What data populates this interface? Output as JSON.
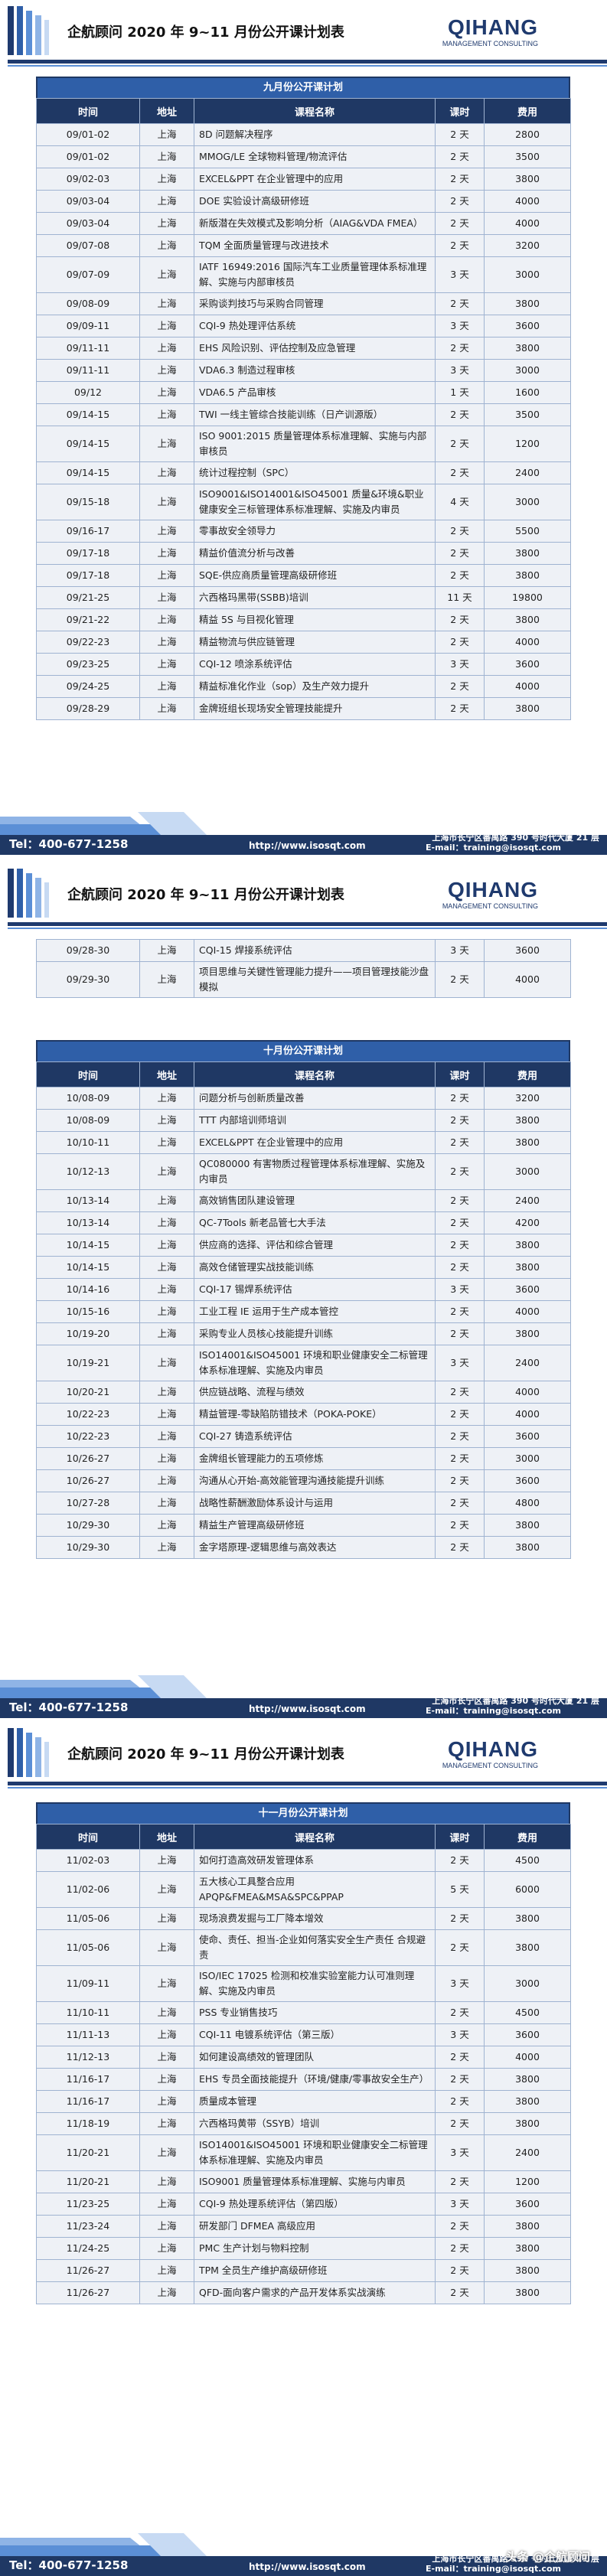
{
  "header": {
    "title": "企航顾问 2020 年 9~11 月份公开课计划表",
    "logo": "QIHANG",
    "logo_sub": "MANAGEMENT CONSULTING"
  },
  "columns": [
    "时间",
    "地址",
    "课程名称",
    "课时",
    "费用"
  ],
  "pages": [
    {
      "blocks": [
        {
          "title": "九月份公开课计划",
          "rows": [
            [
              "09/01-02",
              "上海",
              "8D 问题解决程序",
              "2 天",
              "2800"
            ],
            [
              "09/01-02",
              "上海",
              "MMOG/LE 全球物料管理/物流评估",
              "2 天",
              "3500"
            ],
            [
              "09/02-03",
              "上海",
              "EXCEL&PPT 在企业管理中的应用",
              "2 天",
              "3800"
            ],
            [
              "09/03-04",
              "上海",
              "DOE 实验设计高级研修班",
              "2 天",
              "4000"
            ],
            [
              "09/03-04",
              "上海",
              "新版潜在失效模式及影响分析（AIAG&VDA FMEA）",
              "2 天",
              "4000"
            ],
            [
              "09/07-08",
              "上海",
              "TQM 全面质量管理与改进技术",
              "2 天",
              "3200"
            ],
            [
              "09/07-09",
              "上海",
              "IATF 16949:2016 国际汽车工业质量管理体系标准理解、实施与内部审核员",
              "3 天",
              "3000"
            ],
            [
              "09/08-09",
              "上海",
              "采购谈判技巧与采购合同管理",
              "2 天",
              "3800"
            ],
            [
              "09/09-11",
              "上海",
              "CQI-9 热处理评估系统",
              "3 天",
              "3600"
            ],
            [
              "09/11-11",
              "上海",
              "EHS 风险识别、评估控制及应急管理",
              "2 天",
              "3800"
            ],
            [
              "09/11-11",
              "上海",
              "VDA6.3 制造过程审核",
              "3 天",
              "3000"
            ],
            [
              "09/12",
              "上海",
              "VDA6.5 产品审核",
              "1 天",
              "1600"
            ],
            [
              "09/14-15",
              "上海",
              "TWI 一线主管综合技能训练（日产训源版）",
              "2 天",
              "3500"
            ],
            [
              "09/14-15",
              "上海",
              "ISO 9001:2015 质量管理体系标准理解、实施与内部审核员",
              "2 天",
              "1200"
            ],
            [
              "09/14-15",
              "上海",
              "统计过程控制（SPC）",
              "2 天",
              "2400"
            ],
            [
              "09/15-18",
              "上海",
              "ISO9001&ISO14001&ISO45001 质量&环境&职业健康安全三标管理体系标准理解、实施及内审员",
              "4 天",
              "3000"
            ],
            [
              "09/16-17",
              "上海",
              "零事故安全领导力",
              "2 天",
              "5500"
            ],
            [
              "09/17-18",
              "上海",
              "精益价值流分析与改善",
              "2 天",
              "3800"
            ],
            [
              "09/17-18",
              "上海",
              "SQE-供应商质量管理高级研修班",
              "2 天",
              "3800"
            ],
            [
              "09/21-25",
              "上海",
              "六西格玛黑带(SSBB)培训",
              "11 天",
              "19800"
            ],
            [
              "09/21-22",
              "上海",
              "精益 5S 与目视化管理",
              "2 天",
              "3800"
            ],
            [
              "09/22-23",
              "上海",
              "精益物流与供应链管理",
              "2 天",
              "4000"
            ],
            [
              "09/23-25",
              "上海",
              "CQI-12 喷涂系统评估",
              "3 天",
              "3600"
            ],
            [
              "09/24-25",
              "上海",
              "精益标准化作业（sop）及生产效力提升",
              "2 天",
              "4000"
            ],
            [
              "09/28-29",
              "上海",
              "金牌班组长现场安全管理技能提升",
              "2 天",
              "3800"
            ]
          ]
        }
      ]
    },
    {
      "blocks": [
        {
          "rows": [
            [
              "09/28-30",
              "上海",
              "CQI-15 焊接系统评估",
              "3 天",
              "3600"
            ],
            [
              "09/29-30",
              "上海",
              "项目思维与关键性管理能力提升——项目管理技能沙盘模拟",
              "2 天",
              "4000"
            ]
          ]
        },
        {
          "title": "十月份公开课计划",
          "rows": [
            [
              "10/08-09",
              "上海",
              "问题分析与创新质量改善",
              "2 天",
              "3200"
            ],
            [
              "10/08-09",
              "上海",
              "TTT 内部培训师培训",
              "2 天",
              "3800"
            ],
            [
              "10/10-11",
              "上海",
              "EXCEL&PPT 在企业管理中的应用",
              "2 天",
              "3800"
            ],
            [
              "10/12-13",
              "上海",
              "QC080000 有害物质过程管理体系标准理解、实施及内审员",
              "2 天",
              "3000"
            ],
            [
              "10/13-14",
              "上海",
              "高效销售团队建设管理",
              "2 天",
              "2400"
            ],
            [
              "10/13-14",
              "上海",
              "QC-7Tools 新老品管七大手法",
              "2 天",
              "4200"
            ],
            [
              "10/14-15",
              "上海",
              "供应商的选择、评估和综合管理",
              "2 天",
              "3800"
            ],
            [
              "10/14-15",
              "上海",
              "高效仓储管理实战技能训练",
              "2 天",
              "3800"
            ],
            [
              "10/14-16",
              "上海",
              "CQI-17 锡焊系统评估",
              "3 天",
              "3600"
            ],
            [
              "10/15-16",
              "上海",
              "工业工程 IE 运用于生产成本管控",
              "2 天",
              "4000"
            ],
            [
              "10/19-20",
              "上海",
              "采购专业人员核心技能提升训练",
              "2 天",
              "3800"
            ],
            [
              "10/19-21",
              "上海",
              "ISO14001&ISO45001 环境和职业健康安全二标管理体系标准理解、实施及内审员",
              "3 天",
              "2400"
            ],
            [
              "10/20-21",
              "上海",
              "供应链战略、流程与绩效",
              "2 天",
              "4000"
            ],
            [
              "10/22-23",
              "上海",
              "精益管理-零缺陷防错技术（POKA-POKE）",
              "2 天",
              "4000"
            ],
            [
              "10/22-23",
              "上海",
              "CQI-27 铸造系统评估",
              "2 天",
              "3600"
            ],
            [
              "10/26-27",
              "上海",
              "金牌组长管理能力的五项修炼",
              "2 天",
              "3000"
            ],
            [
              "10/26-27",
              "上海",
              "沟通从心开始-高效能管理沟通技能提升训练",
              "2 天",
              "3600"
            ],
            [
              "10/27-28",
              "上海",
              "战略性薪酬激励体系设计与运用",
              "2 天",
              "4800"
            ],
            [
              "10/29-30",
              "上海",
              "精益生产管理高级研修班",
              "2 天",
              "3800"
            ],
            [
              "10/29-30",
              "上海",
              "金字塔原理-逻辑思维与高效表达",
              "2 天",
              "3800"
            ]
          ]
        }
      ]
    },
    {
      "blocks": [
        {
          "title": "十一月份公开课计划",
          "rows": [
            [
              "11/02-03",
              "上海",
              "如何打造高效研发管理体系",
              "2 天",
              "4500"
            ],
            [
              "11/02-06",
              "上海",
              "五大核心工具整合应用 APQP&FMEA&MSA&SPC&PPAP",
              "5 天",
              "6000"
            ],
            [
              "11/05-06",
              "上海",
              "现场浪费发掘与工厂降本增效",
              "2 天",
              "3800"
            ],
            [
              "11/05-06",
              "上海",
              "使命、责任、担当-企业如何落实安全生产责任 合规避责",
              "2 天",
              "3800"
            ],
            [
              "11/09-11",
              "上海",
              "ISO/IEC 17025 检测和校准实验室能力认可准则理解、实施及内审员",
              "3 天",
              "3000"
            ],
            [
              "11/10-11",
              "上海",
              "PSS 专业销售技巧",
              "2 天",
              "4500"
            ],
            [
              "11/11-13",
              "上海",
              "CQI-11 电镀系统评估（第三版）",
              "3 天",
              "3600"
            ],
            [
              "11/12-13",
              "上海",
              "如何建设高绩效的管理团队",
              "2 天",
              "4000"
            ],
            [
              "11/16-17",
              "上海",
              "EHS 专员全面技能提升（环境/健康/零事故安全生产）",
              "2 天",
              "3800"
            ],
            [
              "11/16-17",
              "上海",
              "质量成本管理",
              "2 天",
              "3800"
            ],
            [
              "11/18-19",
              "上海",
              "六西格玛黄带（SSYB）培训",
              "2 天",
              "3800"
            ],
            [
              "11/20-21",
              "上海",
              "ISO14001&ISO45001 环境和职业健康安全二标管理体系标准理解、实施及内审员",
              "3 天",
              "2400"
            ],
            [
              "11/20-21",
              "上海",
              "ISO9001 质量管理体系标准理解、实施与内审员",
              "2 天",
              "1200"
            ],
            [
              "11/23-25",
              "上海",
              "CQI-9 热处理系统评估（第四版）",
              "3 天",
              "3600"
            ],
            [
              "11/23-24",
              "上海",
              "研发部门 DFMEA 高级应用",
              "2 天",
              "3800"
            ],
            [
              "11/24-25",
              "上海",
              "PMC 生产计划与物料控制",
              "2 天",
              "3800"
            ],
            [
              "11/26-27",
              "上海",
              "TPM 全员生产维护高级研修班",
              "2 天",
              "3800"
            ],
            [
              "11/26-27",
              "上海",
              "QFD-面向客户需求的产品开发体系实战演练",
              "2 天",
              "3800"
            ]
          ]
        }
      ]
    }
  ],
  "footer": {
    "tel": "Tel：400-677-1258",
    "url": "http://www.isosqt.com",
    "address": "上海市长宁区番禺路 390 号时代大厦 21 层",
    "email": "E-mail：training@isosqt.com"
  },
  "watermark": "头条 @企航顾问"
}
